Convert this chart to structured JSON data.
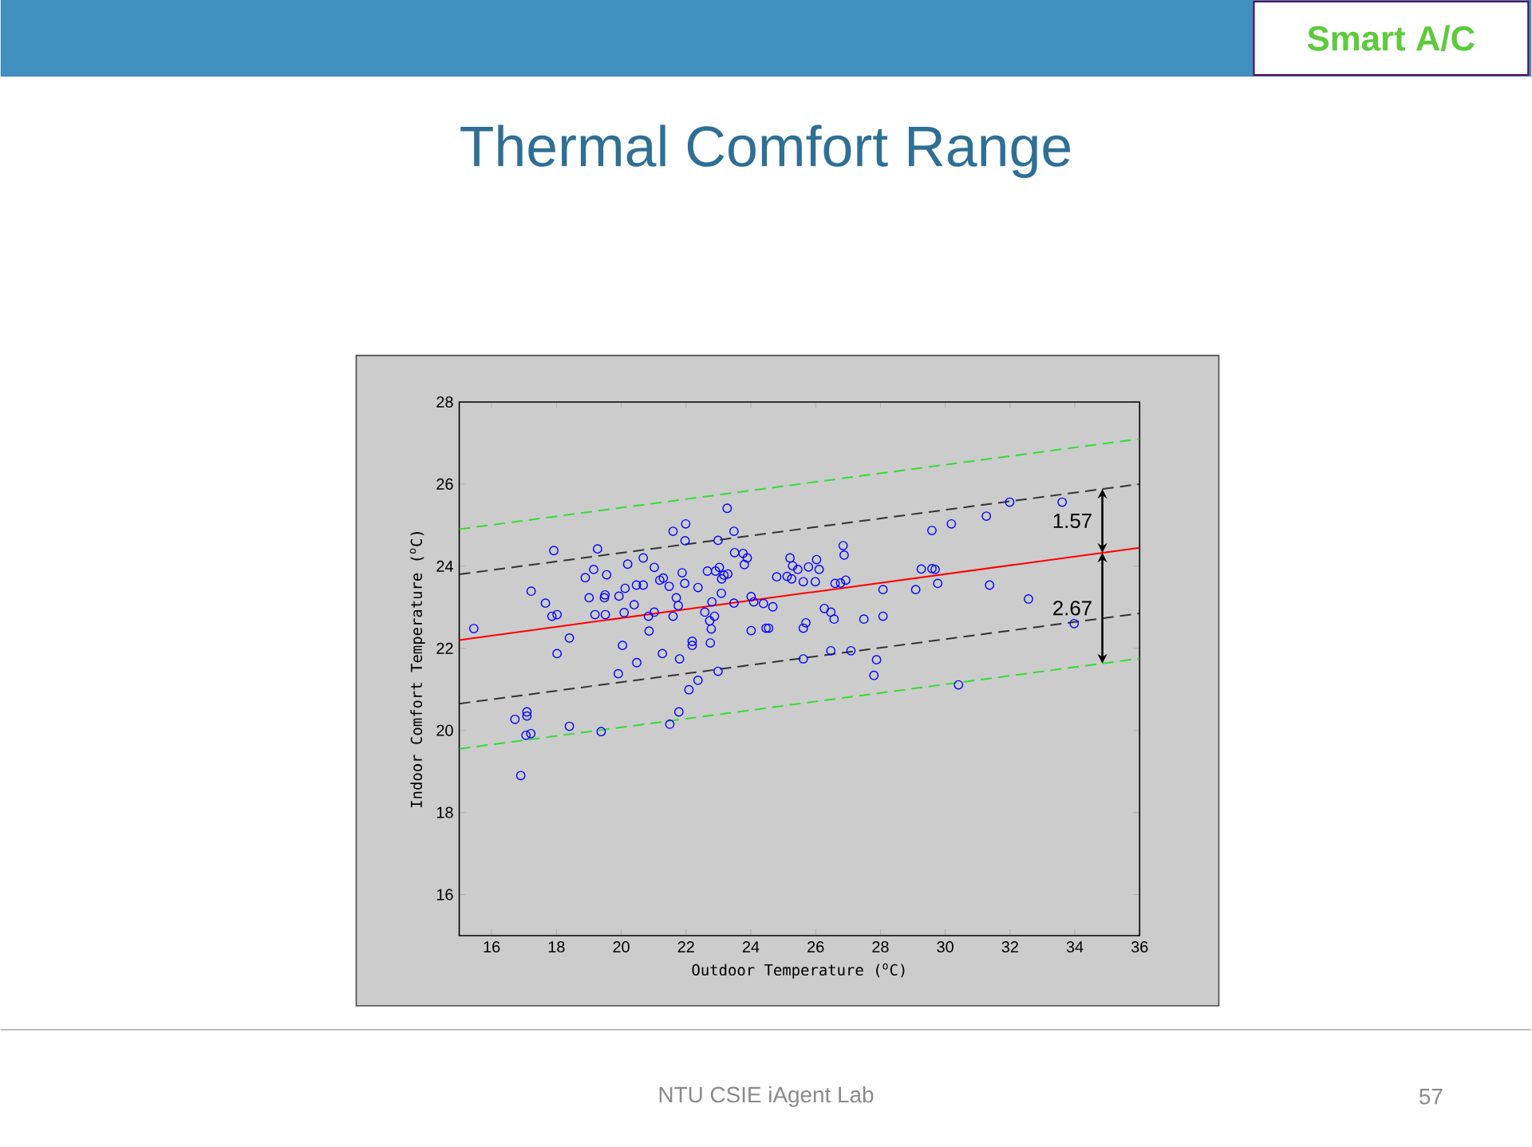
{
  "chart_data": {
    "type": "scatter",
    "title": "Thermal Comfort Range",
    "xlabel": "Outdoor Temperature ($^{o}$C)",
    "ylabel": "Indoor Comfort Temperature ($^{o}$C)",
    "xlim": [
      15,
      36
    ],
    "ylim": [
      15,
      28
    ],
    "xticks": [
      16,
      18,
      20,
      22,
      24,
      26,
      28,
      30,
      32,
      34,
      36
    ],
    "yticks": [
      16,
      18,
      20,
      22,
      24,
      26,
      28
    ],
    "marker": "circle",
    "series": [
      {
        "color": "#0000ff",
        "x": [
          15.45,
          17.22,
          17.66,
          17.86,
          18.02,
          17.92,
          18.02,
          18.4,
          18.89,
          19.01,
          19.15,
          19.19,
          19.27,
          19.48,
          19.55,
          19.51,
          19.5,
          19.93,
          20.04,
          20.12,
          20.09,
          20.2,
          20.4,
          20.47,
          20.68,
          20.48,
          20.68,
          20.86,
          20.84,
          19.91,
          21.02,
          21.02,
          21.19,
          21.3,
          21.27,
          21.48,
          21.6,
          21.6,
          21.7,
          21.76,
          21.8,
          21.88,
          21.99,
          21.97,
          21.96,
          22.09,
          22.19,
          22.19,
          22.37,
          22.37,
          22.58,
          22.66,
          22.73,
          22.8,
          22.78,
          22.75,
          22.88,
          22.91,
          22.99,
          22.99,
          23.03,
          23.09,
          23.1,
          23.17,
          23.27,
          23.29,
          23.48,
          23.48,
          23.5,
          23.8,
          23.76,
          23.89,
          24.01,
          24.01,
          24.09,
          24.47,
          24.39,
          24.8,
          25.12,
          25.26,
          25.21,
          25.29,
          25.45,
          25.62,
          25.78,
          26.03,
          26.11,
          25.99,
          24.55,
          24.68,
          25.62,
          25.7,
          25.62,
          26.27,
          26.47,
          26.57,
          26.47,
          27.09,
          26.6,
          26.77,
          26.93,
          26.85,
          26.88,
          27.49,
          27.88,
          27.8,
          28.08,
          28.08,
          29.09,
          29.26,
          29.59,
          29.69,
          29.77,
          29.59,
          30.19,
          31.27,
          31.99,
          33.61,
          31.37,
          32.57,
          33.98,
          30.41,
          16.72,
          17.09,
          17.09,
          17.06,
          17.21,
          16.9,
          18.4,
          19.38,
          21.5,
          21.78
        ],
        "values": [
          22.48,
          23.39,
          23.1,
          22.78,
          22.82,
          24.38,
          21.87,
          22.25,
          23.72,
          23.23,
          23.92,
          22.82,
          24.42,
          23.23,
          23.79,
          22.82,
          23.3,
          23.27,
          22.07,
          23.46,
          22.87,
          24.05,
          23.06,
          23.54,
          23.54,
          21.65,
          24.2,
          22.42,
          22.78,
          21.38,
          23.97,
          22.88,
          23.66,
          23.71,
          21.87,
          23.51,
          24.85,
          22.78,
          23.23,
          23.04,
          21.74,
          23.84,
          25.03,
          24.62,
          23.58,
          20.99,
          22.17,
          22.07,
          21.22,
          23.48,
          22.88,
          23.88,
          22.67,
          23.13,
          22.47,
          22.13,
          22.78,
          23.88,
          24.63,
          21.44,
          23.97,
          23.34,
          23.69,
          23.78,
          25.41,
          23.81,
          24.85,
          23.1,
          24.33,
          24.04,
          24.31,
          24.2,
          22.43,
          23.26,
          23.13,
          22.49,
          23.09,
          23.74,
          23.75,
          23.69,
          24.2,
          24.01,
          23.92,
          23.62,
          23.98,
          24.16,
          23.92,
          23.62,
          22.49,
          23.01,
          22.49,
          22.62,
          21.74,
          22.97,
          22.88,
          22.71,
          21.94,
          21.94,
          23.58,
          23.59,
          23.66,
          24.5,
          24.27,
          22.71,
          21.72,
          21.34,
          23.43,
          22.78,
          23.43,
          23.93,
          23.94,
          23.92,
          23.58,
          24.87,
          25.03,
          25.22,
          25.56,
          25.56,
          23.54,
          23.2,
          22.6,
          21.11,
          20.27,
          20.45,
          20.35,
          19.88,
          19.92,
          18.9,
          20.1,
          19.97,
          20.15,
          20.45
        ]
      },
      {
        "type": "line",
        "color": "#ff0000",
        "line_style": "solid",
        "marker": "none",
        "x": [
          15,
          36
        ],
        "values": [
          22.2,
          24.45
        ]
      },
      {
        "type": "line",
        "color": "#333333",
        "line_style": "dashed",
        "marker": "none",
        "x": [
          15,
          36
        ],
        "values": [
          23.8,
          26.0
        ]
      },
      {
        "type": "line",
        "color": "#333333",
        "line_style": "dashed",
        "marker": "none",
        "x": [
          15,
          36
        ],
        "values": [
          20.65,
          22.85
        ]
      },
      {
        "type": "line",
        "color": "#33dd33",
        "line_style": "dashed",
        "marker": "none",
        "x": [
          15,
          36
        ],
        "values": [
          24.9,
          27.1
        ]
      },
      {
        "type": "line",
        "color": "#33dd33",
        "line_style": "dashed",
        "marker": "none",
        "x": [
          15,
          36
        ],
        "values": [
          19.55,
          21.75
        ]
      }
    ],
    "annotations": [
      "1.57",
      "2.67",
      "Smart A/C",
      "NTU CSIE iAgent Lab",
      "57"
    ]
  }
}
